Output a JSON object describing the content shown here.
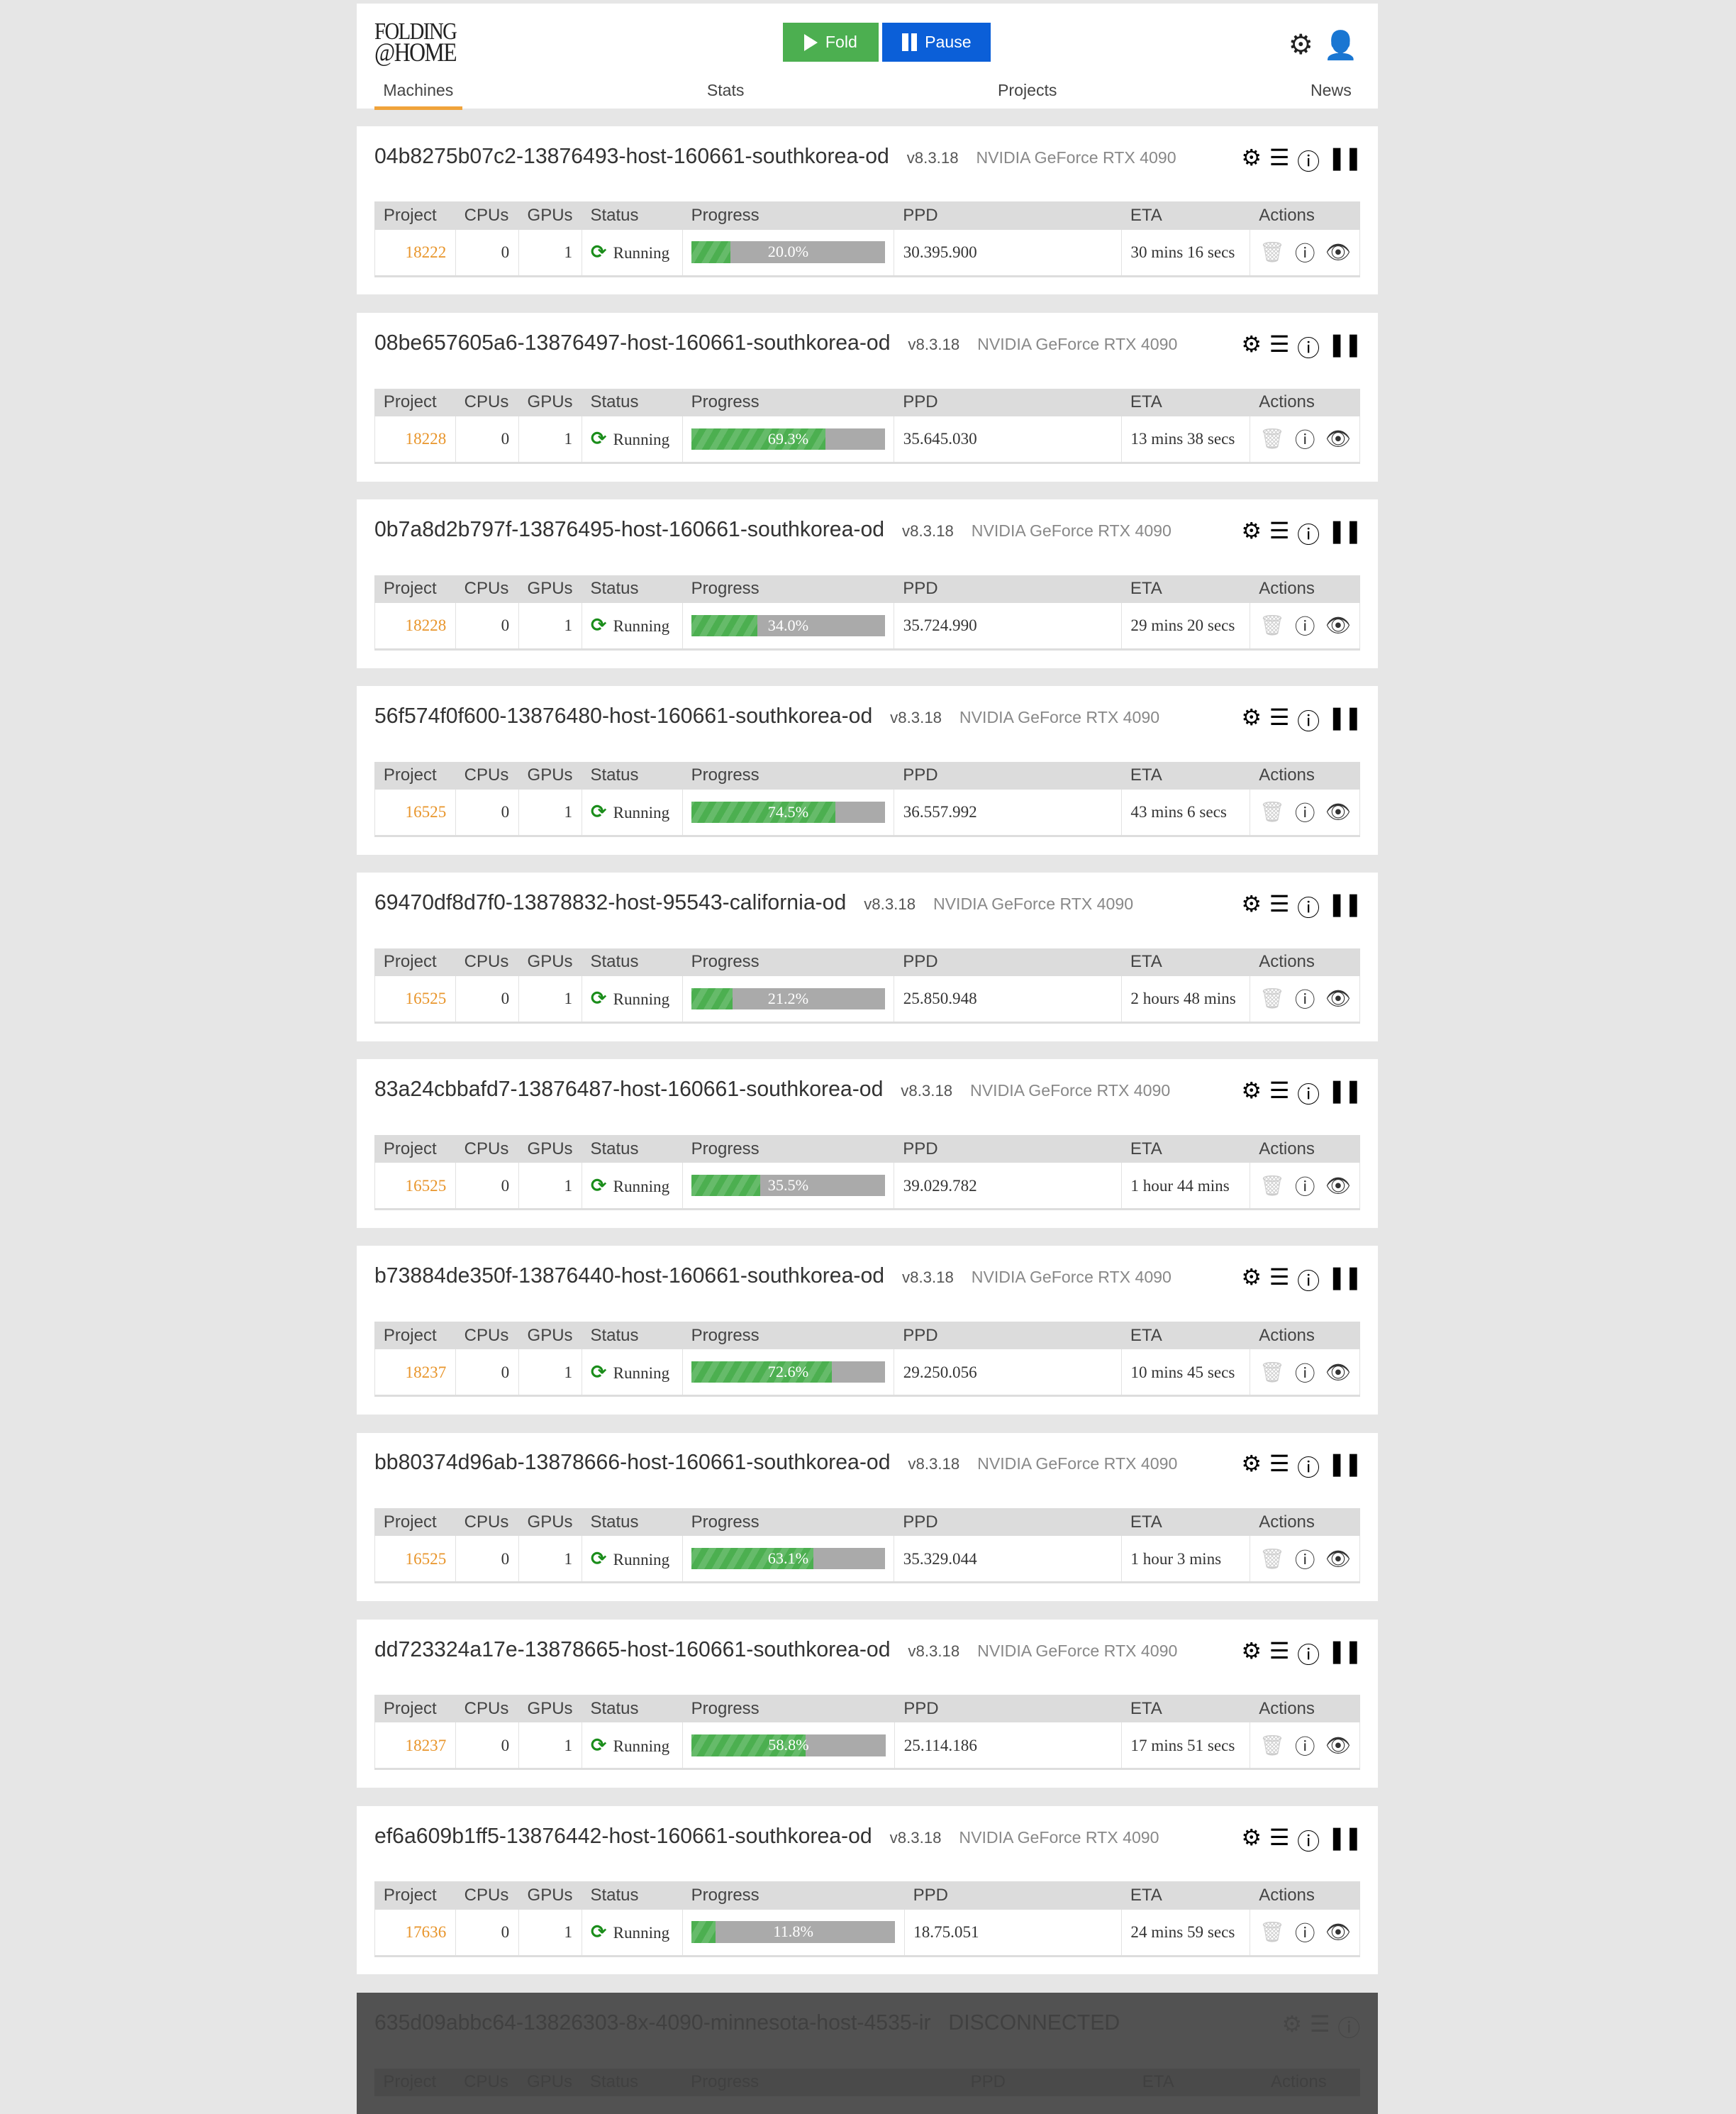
{
  "header": {
    "logo": [
      "FOLDING",
      "@HOME"
    ],
    "fold_label": "Fold",
    "pause_label": "Pause",
    "tabs": [
      {
        "label": "Machines",
        "active": true
      },
      {
        "label": "Stats"
      },
      {
        "label": "Projects"
      },
      {
        "label": "News"
      }
    ]
  },
  "table_headers": [
    "Project",
    "CPUs",
    "GPUs",
    "Status",
    "Progress",
    "PPD",
    "ETA",
    "Actions"
  ],
  "colors": {
    "accent": "#f0a33b",
    "fold": "#4caf50",
    "pause": "#0b5fd8",
    "project_link": "#e8952b",
    "running": "#1a8d1a"
  },
  "machines": [
    {
      "name": "04b8275b07c2-13876493-host-160661-southkorea-od",
      "version": "v8.3.18",
      "gpu": "NVIDIA GeForce RTX 4090",
      "project": "18222",
      "cpus": "0",
      "gpus": "1",
      "status": "Running",
      "progress": 20.0,
      "progress_label": "20.0%",
      "ppd": "30.395.900",
      "eta": "30 mins 16 secs"
    },
    {
      "name": "08be657605a6-13876497-host-160661-southkorea-od",
      "version": "v8.3.18",
      "gpu": "NVIDIA GeForce RTX 4090",
      "project": "18228",
      "cpus": "0",
      "gpus": "1",
      "status": "Running",
      "progress": 69.3,
      "progress_label": "69.3%",
      "ppd": "35.645.030",
      "eta": "13 mins 38 secs"
    },
    {
      "name": "0b7a8d2b797f-13876495-host-160661-southkorea-od",
      "version": "v8.3.18",
      "gpu": "NVIDIA GeForce RTX 4090",
      "project": "18228",
      "cpus": "0",
      "gpus": "1",
      "status": "Running",
      "progress": 34.0,
      "progress_label": "34.0%",
      "ppd": "35.724.990",
      "eta": "29 mins 20 secs"
    },
    {
      "name": "56f574f0f600-13876480-host-160661-southkorea-od",
      "version": "v8.3.18",
      "gpu": "NVIDIA GeForce RTX 4090",
      "project": "16525",
      "cpus": "0",
      "gpus": "1",
      "status": "Running",
      "progress": 74.5,
      "progress_label": "74.5%",
      "ppd": "36.557.992",
      "eta": "43 mins 6 secs"
    },
    {
      "name": "69470df8d7f0-13878832-host-95543-california-od",
      "version": "v8.3.18",
      "gpu": "NVIDIA GeForce RTX 4090",
      "project": "16525",
      "cpus": "0",
      "gpus": "1",
      "status": "Running",
      "progress": 21.2,
      "progress_label": "21.2%",
      "ppd": "25.850.948",
      "eta": "2 hours 48 mins"
    },
    {
      "name": "83a24cbbafd7-13876487-host-160661-southkorea-od",
      "version": "v8.3.18",
      "gpu": "NVIDIA GeForce RTX 4090",
      "project": "16525",
      "cpus": "0",
      "gpus": "1",
      "status": "Running",
      "progress": 35.5,
      "progress_label": "35.5%",
      "ppd": "39.029.782",
      "eta": "1 hour 44 mins"
    },
    {
      "name": "b73884de350f-13876440-host-160661-southkorea-od",
      "version": "v8.3.18",
      "gpu": "NVIDIA GeForce RTX 4090",
      "project": "18237",
      "cpus": "0",
      "gpus": "1",
      "status": "Running",
      "progress": 72.6,
      "progress_label": "72.6%",
      "ppd": "29.250.056",
      "eta": "10 mins 45 secs"
    },
    {
      "name": "bb80374d96ab-13878666-host-160661-southkorea-od",
      "version": "v8.3.18",
      "gpu": "NVIDIA GeForce RTX 4090",
      "project": "16525",
      "cpus": "0",
      "gpus": "1",
      "status": "Running",
      "progress": 63.1,
      "progress_label": "63.1%",
      "ppd": "35.329.044",
      "eta": "1 hour 3 mins"
    },
    {
      "name": "dd723324a17e-13878665-host-160661-southkorea-od",
      "version": "v8.3.18",
      "gpu": "NVIDIA GeForce RTX 4090",
      "project": "18237",
      "cpus": "0",
      "gpus": "1",
      "status": "Running",
      "progress": 58.8,
      "progress_label": "58.8%",
      "ppd": "25.114.186",
      "eta": "17 mins 51 secs"
    },
    {
      "name": "ef6a609b1ff5-13876442-host-160661-southkorea-od",
      "version": "v8.3.18",
      "gpu": "NVIDIA GeForce RTX 4090",
      "project": "17636",
      "cpus": "0",
      "gpus": "1",
      "status": "Running",
      "progress": 11.8,
      "progress_label": "11.8%",
      "ppd": "18.75.051",
      "eta": "24 mins 59 secs"
    }
  ],
  "disconnected": {
    "name": "635d09abbc64-13826303-8x-4090-minnesota-host-4535-ir",
    "status": "DISCONNECTED"
  }
}
